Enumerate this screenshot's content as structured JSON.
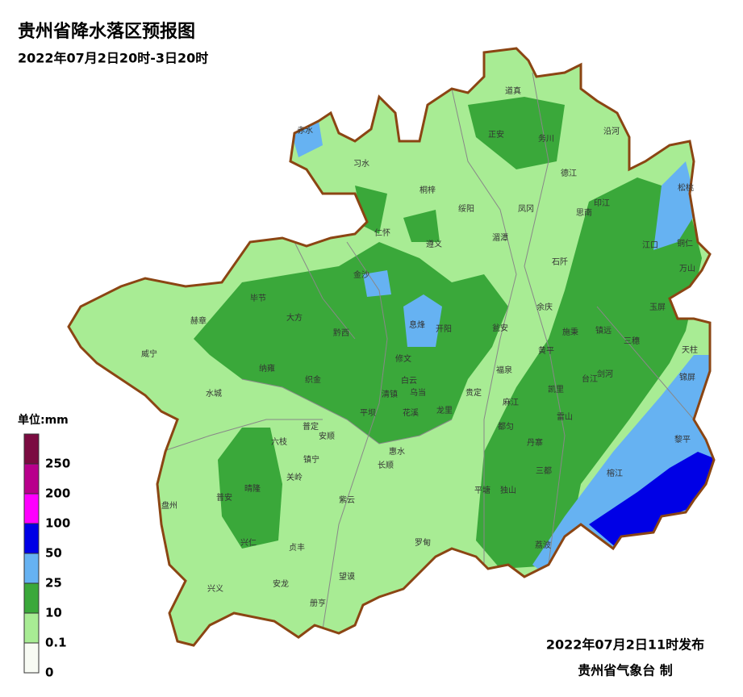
{
  "header": {
    "title": "贵州省降水落区预报图",
    "subtitle": "2022年07月2日20时-3日20时"
  },
  "legend": {
    "unit": "单位:mm",
    "colors": [
      "#7b0b41",
      "#b8008c",
      "#ff00ff",
      "#0000e6",
      "#66b2f2",
      "#3aa83a",
      "#a8ec94",
      "#f8fbf4"
    ],
    "labels": [
      "250",
      "200",
      "100",
      "50",
      "25",
      "10",
      "0.1",
      "0"
    ]
  },
  "places": [
    "道真",
    "赤水",
    "正安",
    "务川",
    "沿河",
    "习水",
    "德江",
    "松桃",
    "桐梓",
    "绥阳",
    "凤冈",
    "印江",
    "思南",
    "仁怀",
    "湄潭",
    "遵义",
    "江口",
    "铜仁",
    "石阡",
    "万山",
    "金沙",
    "毕节",
    "大方",
    "余庆",
    "赫章",
    "息烽",
    "开阳",
    "黔西",
    "瓮安",
    "施秉",
    "镇远",
    "玉屏",
    "威宁",
    "修文",
    "三穗",
    "黄平",
    "天柱",
    "纳雍",
    "福泉",
    "剑河",
    "锦屏",
    "织金",
    "白云",
    "台江",
    "乌当",
    "贵定",
    "凯里",
    "清镇",
    "水城",
    "麻江",
    "平坝",
    "花溪",
    "龙里",
    "雷山",
    "都匀",
    "普定",
    "安顺",
    "丹寨",
    "黎平",
    "六枝",
    "惠水",
    "镇宁",
    "长顺",
    "三都",
    "关岭",
    "晴隆",
    "普安",
    "紫云",
    "平塘",
    "独山",
    "榕江",
    "盘州",
    "兴仁",
    "贞丰",
    "罗甸",
    "荔波",
    "兴义",
    "安龙",
    "望谟",
    "册亨"
  ],
  "footer": {
    "issued": "2022年07月2日11时发布",
    "agency": "贵州省气象台 制"
  }
}
